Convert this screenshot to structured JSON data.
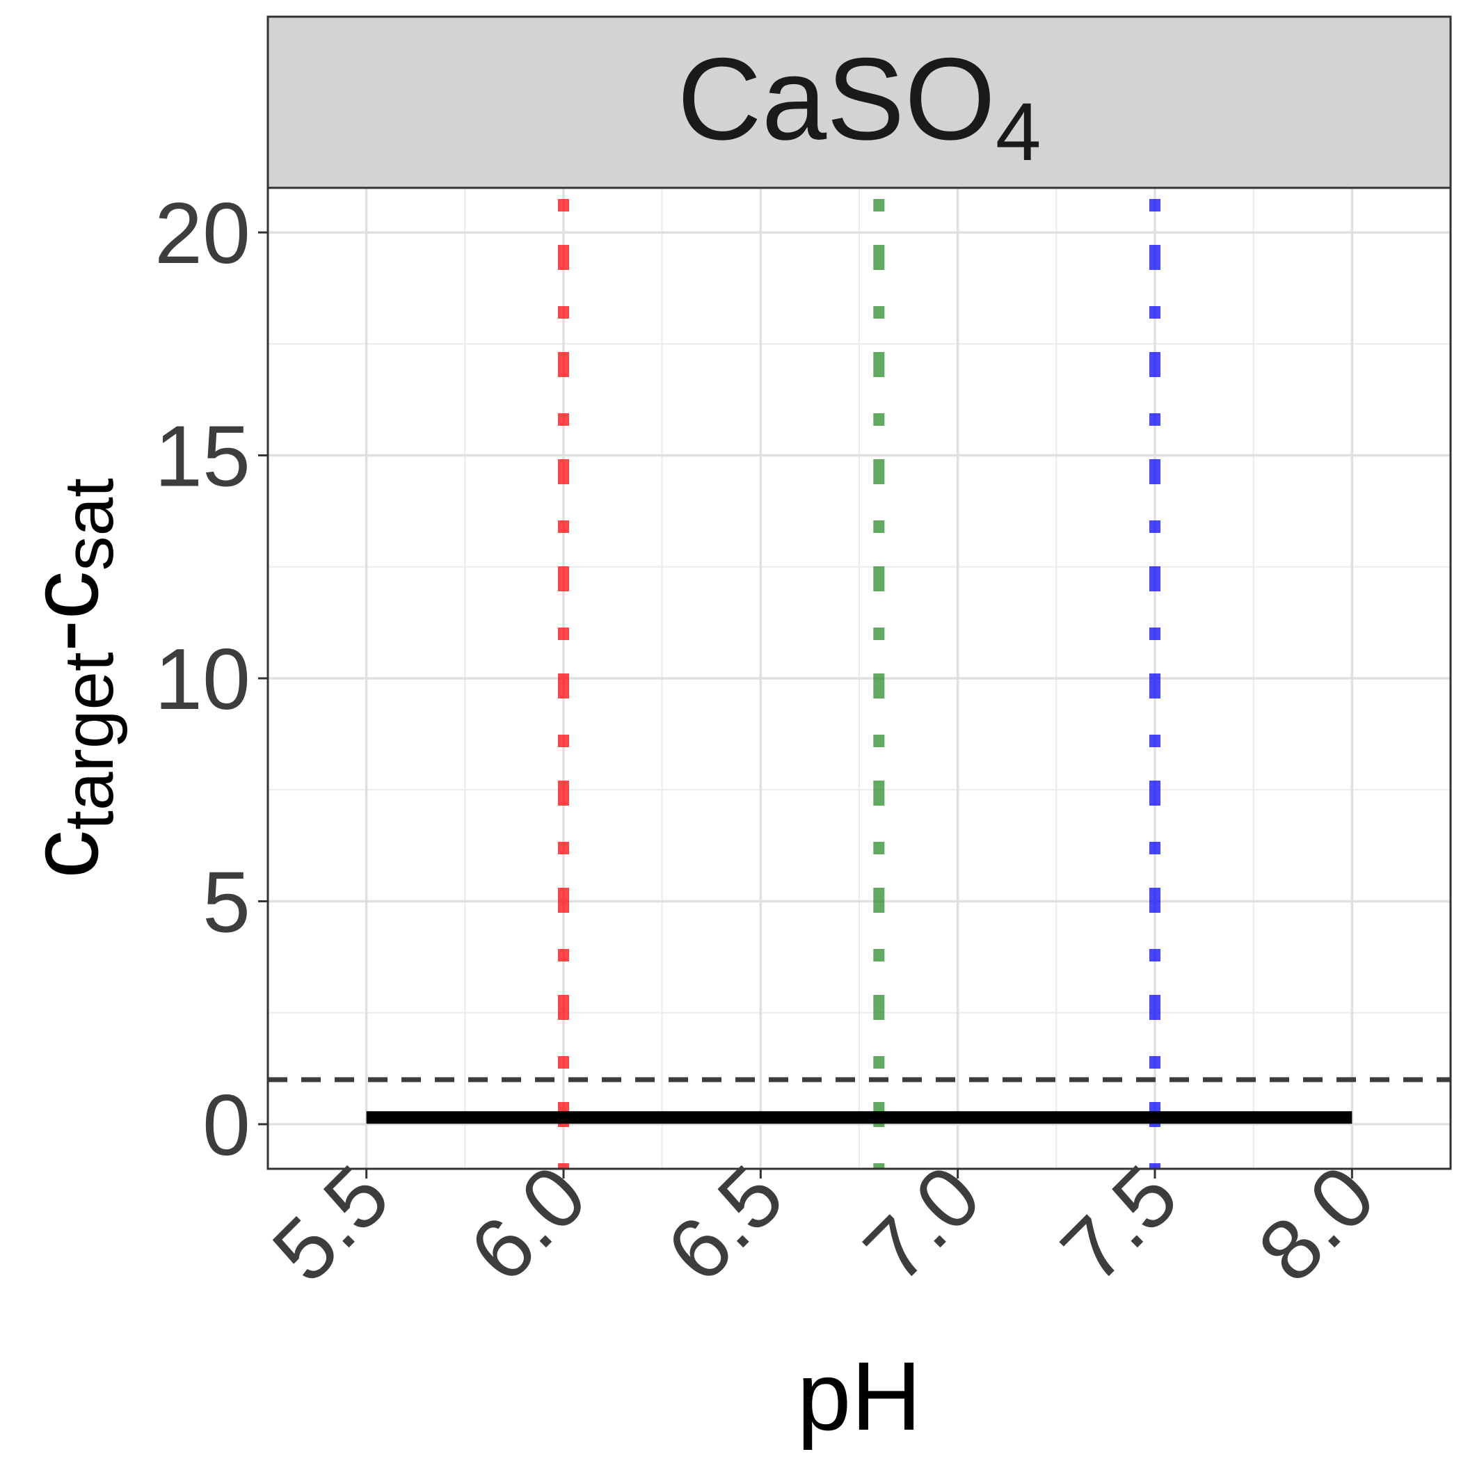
{
  "chart_data": {
    "type": "line",
    "panel": {
      "label": "CaSO",
      "label_subscript": "4"
    },
    "xlabel": "pH",
    "ylabel": {
      "c1": "c",
      "sub1": "target",
      "mid": "-c",
      "sub2": "sat"
    },
    "xlim": [
      5.25,
      8.25
    ],
    "ylim": [
      -1,
      21
    ],
    "x_ticks": [
      5.5,
      6.0,
      6.5,
      7.0,
      7.5,
      8.0
    ],
    "x_tick_labels": [
      "5.5",
      "6.0",
      "6.5",
      "7.0",
      "7.5",
      "8.0"
    ],
    "y_ticks": [
      0,
      5,
      10,
      15,
      20
    ],
    "y_tick_labels": [
      "0",
      "5",
      "10",
      "15",
      "20"
    ],
    "grid": true,
    "series": [
      {
        "style": "solid",
        "color": "#000000",
        "x": [
          5.5,
          8.0
        ],
        "y": [
          0.15,
          0.15
        ]
      }
    ],
    "reference_lines": [
      {
        "orientation": "horizontal",
        "value": 1,
        "style": "dashed",
        "color": "#3d3d3d"
      },
      {
        "orientation": "vertical",
        "value": 6.0,
        "style": "dot-dash",
        "color": "#ff0000"
      },
      {
        "orientation": "vertical",
        "value": 6.8,
        "style": "dot-dash",
        "color": "#228b22"
      },
      {
        "orientation": "vertical",
        "value": 7.5,
        "style": "dot-dash",
        "color": "#0000ff"
      }
    ]
  }
}
